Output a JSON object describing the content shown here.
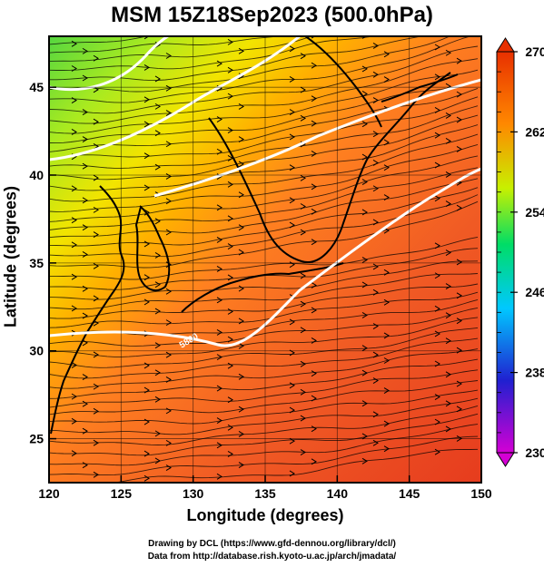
{
  "title": "MSM 15Z18Sep2023 (500.0hPa)",
  "xlabel": "Longitude (degrees)",
  "ylabel": "Latitude  (degrees)",
  "x_ticks": [
    "120",
    "125",
    "130",
    "135",
    "140",
    "145",
    "150"
  ],
  "y_ticks": [
    "25",
    "30",
    "35",
    "40",
    "45"
  ],
  "colorbar": {
    "min": 230,
    "max": 270,
    "labels": [
      "270",
      "262",
      "254",
      "246",
      "238",
      "230"
    ],
    "stops": [
      "#d400d4",
      "#2020d0",
      "#00c8ff",
      "#00dd66",
      "#c8f000",
      "#ff8800",
      "#e83000"
    ]
  },
  "contour_label": "5880",
  "footer": {
    "line1": "Drawing by DCL (https://www.gfd-dennou.org/library/dcl/)",
    "line2": "Data from http://database.rish.kyoto-u.ac.jp/arch/jmadata/"
  },
  "map_extent": {
    "lon": [
      120,
      150
    ],
    "lat": [
      22.5,
      47.9
    ]
  },
  "chart_data": {
    "type": "heatmap",
    "title": "MSM 15Z18Sep2023 (500.0hPa)",
    "xlabel": "Longitude (degrees)",
    "ylabel": "Latitude  (degrees)",
    "xlim": [
      120,
      150
    ],
    "ylim": [
      22.5,
      47.9
    ],
    "colorbar_range": [
      230,
      270
    ],
    "streamlines": true,
    "contour_labels": [
      "5880"
    ]
  }
}
